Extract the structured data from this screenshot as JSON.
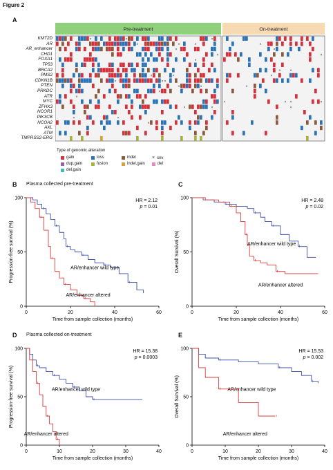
{
  "figure_title": "Figure 2",
  "panel_a": {
    "letter": "A",
    "groups": [
      {
        "label": "Pre-treatment",
        "color": "#8fd07a"
      },
      {
        "label": "On-treatment",
        "color": "#f7d9b2"
      }
    ],
    "genes": [
      "KMT2D",
      "AR",
      "AR_enhancer",
      "CHD1",
      "FOXA1",
      "TP53",
      "BRCA2",
      "PMS2",
      "CDKN1B",
      "PTEN",
      "PRKDC",
      "ATR",
      "MYC",
      "ZFHX3",
      "NCOR1",
      "PIK3CB",
      "NCOA2",
      "AXL",
      "ATM",
      "TMPRSS2-ERG"
    ],
    "legend_title": "Type of genomic alteration",
    "legend": [
      {
        "label": "gain",
        "color": "#d7303b",
        "icon": "square"
      },
      {
        "label": "loss",
        "color": "#2b72b8",
        "icon": "square"
      },
      {
        "label": "indel",
        "color": "#8b5a3c",
        "icon": "square"
      },
      {
        "label": "snv",
        "color": "#333333",
        "icon": "x-mark"
      },
      {
        "label": "dup,gain",
        "color": "#9463a8",
        "icon": "square"
      },
      {
        "label": "fusion",
        "color": "#a7b23a",
        "icon": "square"
      },
      {
        "label": "indel,gain",
        "color": "#d8a233",
        "icon": "square"
      },
      {
        "label": "del",
        "color": "#e58ac0",
        "icon": "square"
      },
      {
        "label": "del,gain",
        "color": "#49b7b3",
        "icon": "square"
      }
    ]
  },
  "panels": [
    {
      "letter": "B",
      "caption": "Plasma collected pre-treatment",
      "hr": "HR = 2.12",
      "p_label": "p",
      "p_value": " = 0.01",
      "chart_data": {
        "type": "line",
        "ylabel": "Progression-free survival (%)",
        "xlabel": "Time from sample collection (months)",
        "xlim": [
          0,
          60
        ],
        "ylim": [
          0,
          100
        ],
        "xticks": [
          0,
          20,
          40,
          60
        ],
        "yticks": [
          0,
          50,
          100
        ],
        "series": [
          {
            "name": "AR/enhancer wild type",
            "color": "#3b4ea8",
            "points": [
              [
                0,
                100
              ],
              [
                3,
                98
              ],
              [
                5,
                94
              ],
              [
                7,
                90
              ],
              [
                9,
                85
              ],
              [
                11,
                80
              ],
              [
                13,
                74
              ],
              [
                15,
                68
              ],
              [
                17,
                62
              ],
              [
                18,
                55
              ],
              [
                20,
                52
              ],
              [
                22,
                50
              ],
              [
                25,
                47
              ],
              [
                28,
                43
              ],
              [
                31,
                40
              ],
              [
                35,
                38
              ],
              [
                38,
                36
              ],
              [
                42,
                30
              ],
              [
                46,
                22
              ],
              [
                50,
                15
              ],
              [
                53,
                12
              ]
            ]
          },
          {
            "name": "AR/enhancer altered",
            "color": "#d93a3a",
            "points": [
              [
                0,
                100
              ],
              [
                2,
                96
              ],
              [
                4,
                90
              ],
              [
                6,
                82
              ],
              [
                8,
                70
              ],
              [
                10,
                55
              ],
              [
                11,
                44
              ],
              [
                13,
                32
              ],
              [
                15,
                26
              ],
              [
                17,
                20
              ],
              [
                20,
                15
              ],
              [
                23,
                10
              ],
              [
                26,
                7
              ],
              [
                29,
                4
              ],
              [
                31,
                0
              ]
            ]
          }
        ]
      }
    },
    {
      "letter": "C",
      "caption": "",
      "hr": "HR = 2.48",
      "p_label": "p",
      "p_value": " = 0.02",
      "chart_data": {
        "type": "line",
        "ylabel": "Overall Survival (%)",
        "xlabel": "Time from sample collection (months)",
        "xlim": [
          0,
          60
        ],
        "ylim": [
          0,
          100
        ],
        "xticks": [
          0,
          20,
          40,
          60
        ],
        "yticks": [
          0,
          50,
          100
        ],
        "series": [
          {
            "name": "AR/enhancer wild type",
            "color": "#3b4ea8",
            "points": [
              [
                0,
                100
              ],
              [
                5,
                98
              ],
              [
                10,
                96
              ],
              [
                15,
                94
              ],
              [
                20,
                92
              ],
              [
                25,
                90
              ],
              [
                28,
                86
              ],
              [
                31,
                82
              ],
              [
                33,
                78
              ],
              [
                36,
                74
              ],
              [
                40,
                66
              ],
              [
                44,
                60
              ],
              [
                48,
                55
              ],
              [
                52,
                45
              ],
              [
                56,
                45
              ]
            ]
          },
          {
            "name": "AR/enhancer altered",
            "color": "#d93a3a",
            "points": [
              [
                0,
                100
              ],
              [
                6,
                98
              ],
              [
                12,
                96
              ],
              [
                17,
                92
              ],
              [
                20,
                86
              ],
              [
                22,
                78
              ],
              [
                24,
                66
              ],
              [
                25,
                56
              ],
              [
                26,
                46
              ],
              [
                28,
                42
              ],
              [
                31,
                40
              ],
              [
                34,
                38
              ],
              [
                38,
                32
              ],
              [
                42,
                30
              ],
              [
                57,
                30
              ]
            ]
          }
        ]
      }
    },
    {
      "letter": "D",
      "caption": "Plasma collected on-treatment",
      "hr": "HR = 15.38",
      "p_label": "p",
      "p_value": " = 0.0003",
      "chart_data": {
        "type": "line",
        "ylabel": "Progression-free survival (%)",
        "xlabel": "Time from sample collection (months)",
        "xlim": [
          0,
          40
        ],
        "ylim": [
          0,
          100
        ],
        "xticks": [
          0,
          10,
          20,
          30,
          40
        ],
        "yticks": [
          0,
          50,
          100
        ],
        "series": [
          {
            "name": "AR/enhancer wild type",
            "color": "#3b4ea8",
            "points": [
              [
                0,
                100
              ],
              [
                1,
                94
              ],
              [
                2,
                88
              ],
              [
                3,
                82
              ],
              [
                4,
                80
              ],
              [
                6,
                76
              ],
              [
                8,
                72
              ],
              [
                10,
                68
              ],
              [
                12,
                64
              ],
              [
                14,
                60
              ],
              [
                16,
                56
              ],
              [
                18,
                50
              ],
              [
                20,
                47
              ],
              [
                35,
                47
              ]
            ]
          },
          {
            "name": "AR/enhancer altered",
            "color": "#d93a3a",
            "points": [
              [
                0,
                100
              ],
              [
                1,
                88
              ],
              [
                2,
                76
              ],
              [
                3,
                64
              ],
              [
                4,
                52
              ],
              [
                5,
                40
              ],
              [
                6,
                30
              ],
              [
                7,
                22
              ],
              [
                8,
                14
              ],
              [
                9,
                6
              ],
              [
                10,
                0
              ]
            ]
          }
        ]
      }
    },
    {
      "letter": "E",
      "caption": "",
      "hr": "HR = 15.53",
      "p_label": "p",
      "p_value": " = 0.002",
      "chart_data": {
        "type": "line",
        "ylabel": "Overall Survival (%)",
        "xlabel": "Time from sample collection (months)",
        "xlim": [
          0,
          40
        ],
        "ylim": [
          0,
          100
        ],
        "xticks": [
          0,
          10,
          20,
          30,
          40
        ],
        "yticks": [
          0,
          50,
          100
        ],
        "series": [
          {
            "name": "AR/enhancer wild type",
            "color": "#3b4ea8",
            "points": [
              [
                0,
                100
              ],
              [
                2,
                94
              ],
              [
                4,
                90
              ],
              [
                8,
                88
              ],
              [
                14,
                86
              ],
              [
                20,
                84
              ],
              [
                26,
                80
              ],
              [
                30,
                76
              ],
              [
                33,
                72
              ],
              [
                36,
                66
              ],
              [
                38,
                64
              ]
            ]
          },
          {
            "name": "AR/enhancer altered",
            "color": "#d93a3a",
            "points": [
              [
                0,
                100
              ],
              [
                2,
                80
              ],
              [
                4,
                70
              ],
              [
                8,
                58
              ],
              [
                14,
                44
              ],
              [
                20,
                30
              ],
              [
                25,
                30
              ]
            ]
          }
        ]
      }
    }
  ]
}
